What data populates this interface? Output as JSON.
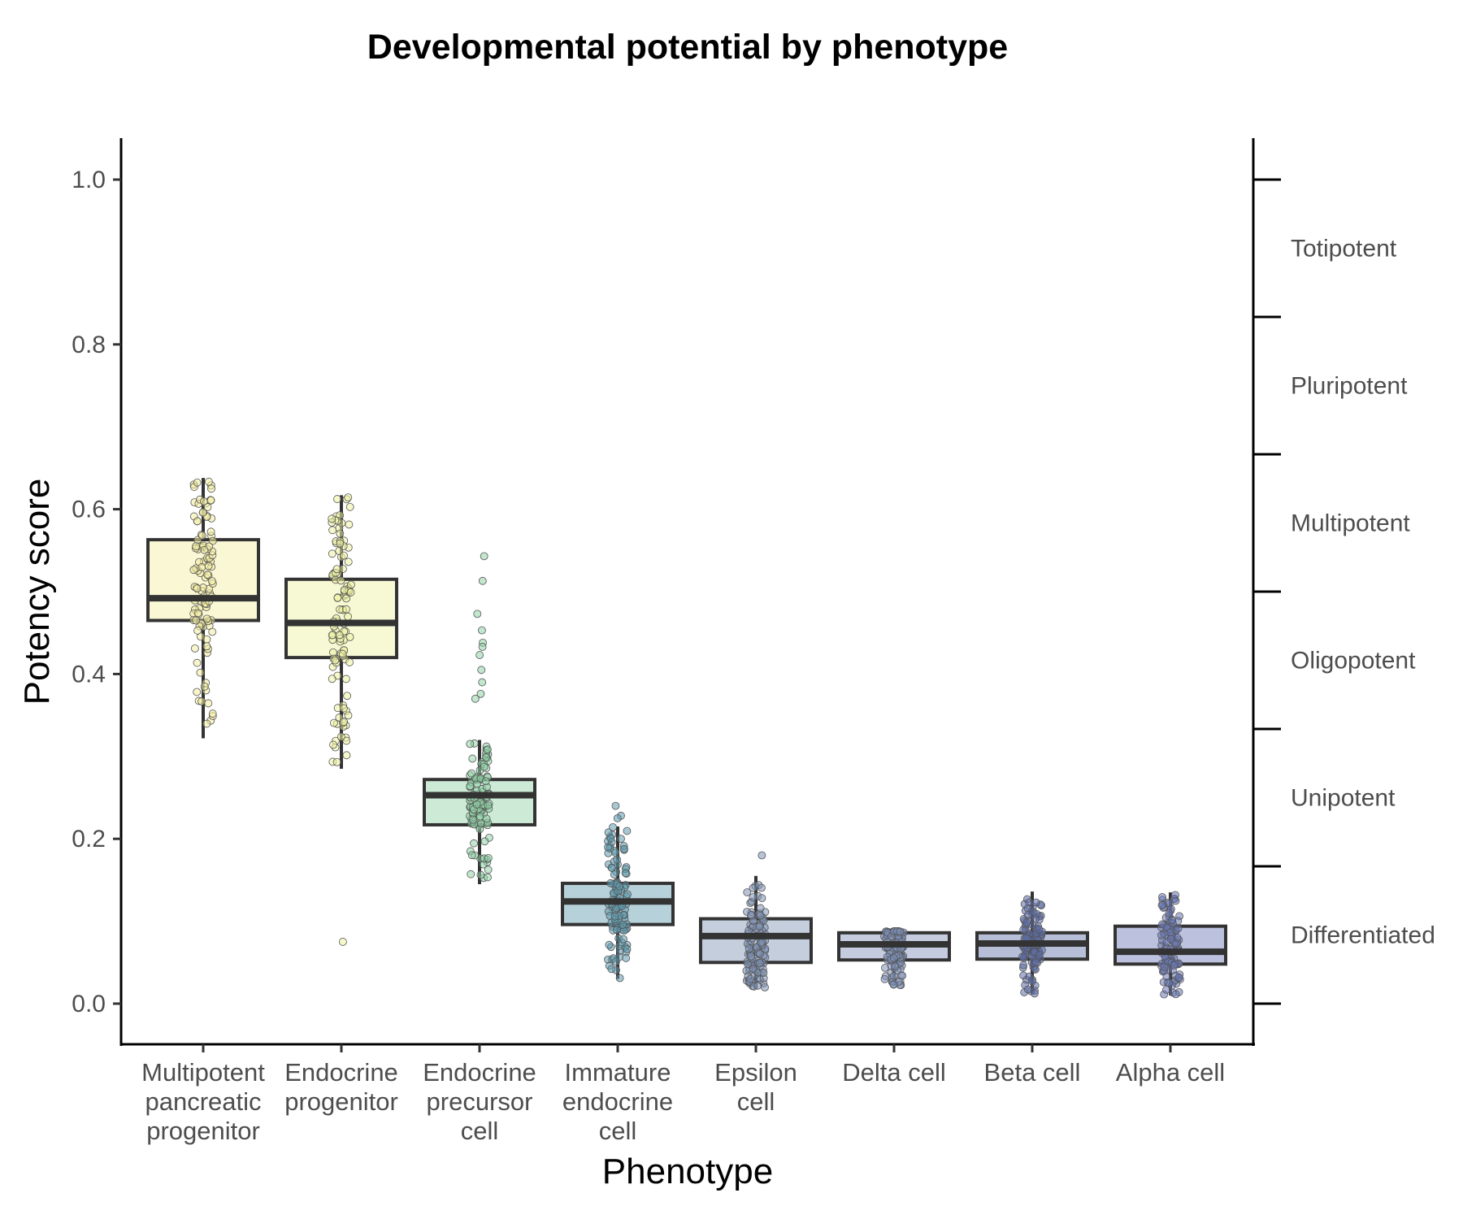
{
  "chart_data": {
    "type": "box",
    "title": "Developmental potential by phenotype",
    "xlabel": "Phenotype",
    "ylabel": "Potency score",
    "ylim": [
      -0.05,
      1.05
    ],
    "yticks": [
      "0.0",
      "0.2",
      "0.4",
      "0.6",
      "0.8",
      "1.0"
    ],
    "grid": false,
    "legend": "none",
    "categories": [
      {
        "label": [
          "Multipotent",
          "pancreatic",
          "progenitor"
        ],
        "q1": 0.465,
        "median": 0.492,
        "q3": 0.563,
        "whisker_low": 0.322,
        "whisker_high": 0.638,
        "color": "#f3eda0",
        "outliers": []
      },
      {
        "label": [
          "Endocrine",
          "progenitor"
        ],
        "q1": 0.42,
        "median": 0.462,
        "q3": 0.515,
        "whisker_low": 0.285,
        "whisker_high": 0.617,
        "color": "#eef2a2",
        "outliers": [
          0.075
        ]
      },
      {
        "label": [
          "Endocrine",
          "precursor",
          "cell"
        ],
        "q1": 0.217,
        "median": 0.253,
        "q3": 0.272,
        "whisker_low": 0.145,
        "whisker_high": 0.32,
        "color": "#8fd1a5",
        "outliers": [
          0.543,
          0.513,
          0.473,
          0.453,
          0.438,
          0.433,
          0.423,
          0.405,
          0.39,
          0.376,
          0.37
        ]
      },
      {
        "label": [
          "Immature",
          "endocrine",
          "cell"
        ],
        "q1": 0.096,
        "median": 0.124,
        "q3": 0.146,
        "whisker_low": 0.03,
        "whisker_high": 0.215,
        "color": "#5f9aae",
        "outliers": [
          0.24,
          0.228,
          0.225
        ]
      },
      {
        "label": [
          "Epsilon",
          "cell"
        ],
        "q1": 0.05,
        "median": 0.082,
        "q3": 0.103,
        "whisker_low": 0.018,
        "whisker_high": 0.155,
        "color": "#7d92b4",
        "outliers": [
          0.18
        ]
      },
      {
        "label": [
          "Delta cell"
        ],
        "q1": 0.053,
        "median": 0.072,
        "q3": 0.086,
        "whisker_low": 0.022,
        "whisker_high": 0.088,
        "color": "#7e8fb8",
        "outliers": []
      },
      {
        "label": [
          "Beta cell"
        ],
        "q1": 0.054,
        "median": 0.073,
        "q3": 0.086,
        "whisker_low": 0.012,
        "whisker_high": 0.136,
        "color": "#5d6ea8",
        "outliers": []
      },
      {
        "label": [
          "Alpha cell"
        ],
        "q1": 0.048,
        "median": 0.063,
        "q3": 0.094,
        "whisker_low": 0.01,
        "whisker_high": 0.135,
        "color": "#6a78b5",
        "outliers": []
      }
    ],
    "secondary_axis": {
      "bands": [
        "Totipotent",
        "Pluripotent",
        "Multipotent",
        "Oligopotent",
        "Unipotent",
        "Differentiated"
      ],
      "ticks": [
        0.0,
        0.1667,
        0.3333,
        0.5,
        0.6667,
        0.8333,
        1.0
      ]
    }
  }
}
